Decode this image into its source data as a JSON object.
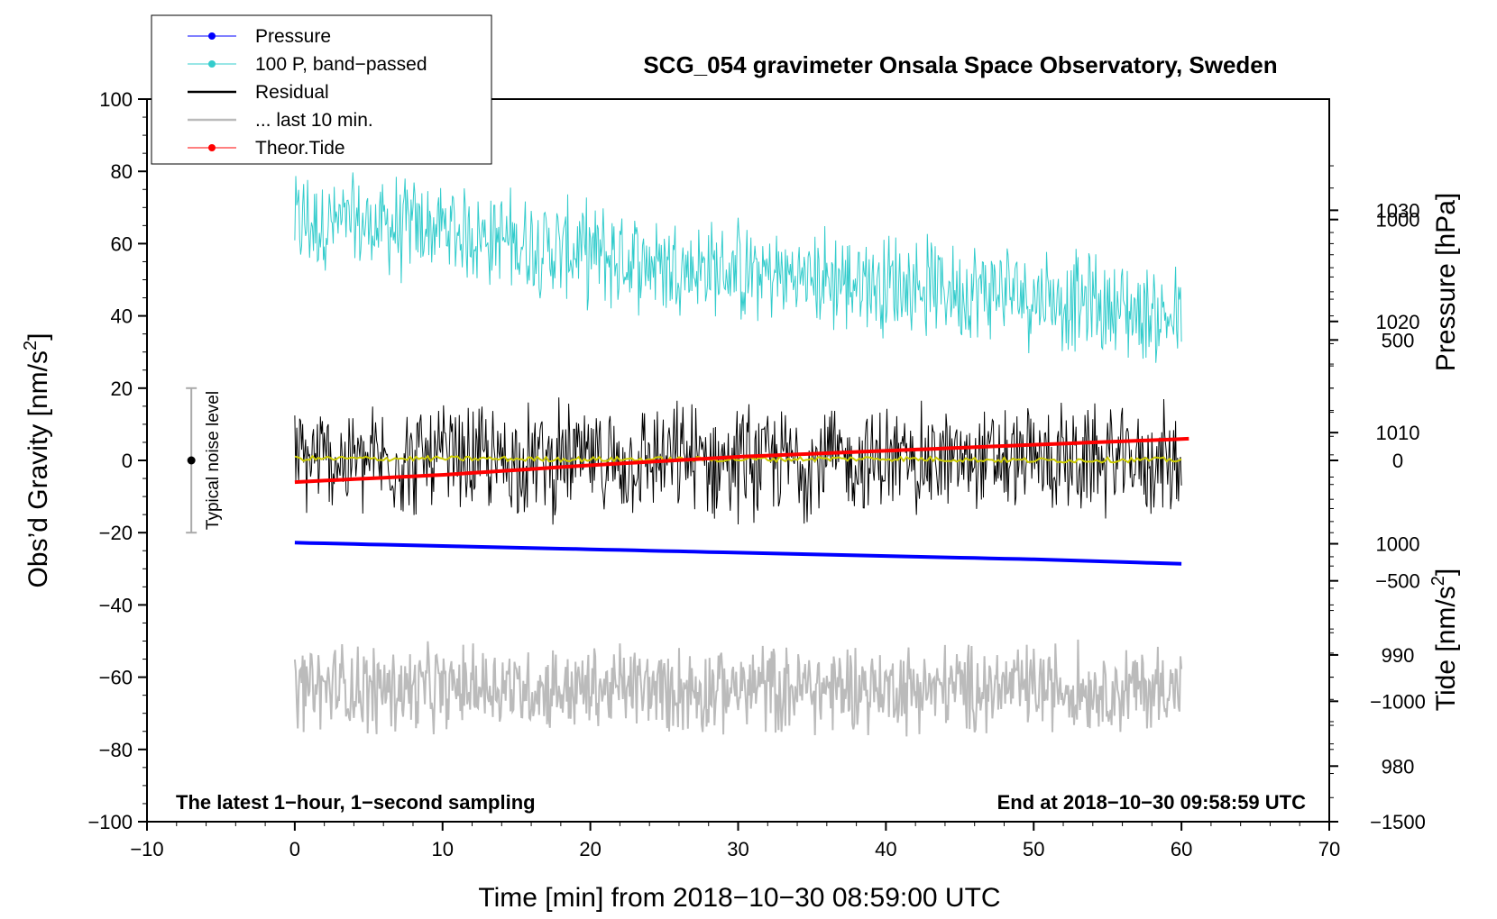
{
  "chart_data": {
    "type": "line",
    "title": "SCG_054 gravimeter Onsala Space Observatory, Sweden",
    "xlabel": "Time [min] from 2018−10−30 08:59:00 UTC",
    "ylabel_left": "Obs’d Gravity [nm/s",
    "ylabel_left_sup": "2",
    "ylabel_left_end": "]",
    "ylabel_right_pressure": "Pressure [hPa]",
    "ylabel_right_tide": "Tide [nm/s",
    "ylabel_right_tide_sup": "2",
    "ylabel_right_tide_end": "]",
    "xlim": [
      -10,
      70
    ],
    "ylim": [
      -100,
      100
    ],
    "pressure_lim": [
      975,
      1040
    ],
    "tide_lim": [
      -1500,
      1500
    ],
    "x_ticks": [
      -10,
      0,
      10,
      20,
      30,
      40,
      50,
      60,
      70
    ],
    "x_tick_labels": [
      "−10",
      "0",
      "10",
      "20",
      "30",
      "40",
      "50",
      "60",
      "70"
    ],
    "y_ticks": [
      -100,
      -80,
      -60,
      -40,
      -20,
      0,
      20,
      40,
      60,
      80,
      100
    ],
    "y_tick_labels": [
      "−100",
      "−80",
      "−60",
      "−40",
      "−20",
      "0",
      "20",
      "40",
      "60",
      "80",
      "100"
    ],
    "pressure_ticks": [
      980,
      990,
      1000,
      1010,
      1020,
      1030
    ],
    "pressure_tick_labels": [
      "980",
      "990",
      "1000",
      "1010",
      "1020",
      "1030"
    ],
    "tide_ticks": [
      -1500,
      -1000,
      -500,
      0,
      500,
      1000
    ],
    "tide_tick_labels": [
      "−1500",
      "−1000",
      "−500",
      "0",
      "500",
      "1000"
    ],
    "legend": [
      {
        "label": "Pressure",
        "color": "#0000ff",
        "marker": true
      },
      {
        "label": "100 P, band−passed",
        "color": "#33cccc",
        "marker": true
      },
      {
        "label": "Residual",
        "color": "#000000",
        "marker": false
      },
      {
        "label": "... last 10 min.",
        "color": "#bbbbbb",
        "marker": false
      },
      {
        "label": "Theor.Tide",
        "color": "#ff0000",
        "marker": true
      }
    ],
    "legend_position": "top-left",
    "annotations": {
      "left": "The latest 1−hour, 1−second sampling",
      "right": "End at 2018−10−30 09:58:59 UTC"
    },
    "noise_bar": {
      "label": "Typical noise level",
      "x": -7,
      "center": 0,
      "low": -20,
      "high": 20
    },
    "series": [
      {
        "name": "Pressure",
        "axis": "pressure",
        "color": "#0000ff",
        "x": [
          0,
          10,
          20,
          30,
          40,
          50,
          60
        ],
        "values": [
          1000.1,
          999.8,
          999.5,
          999.2,
          998.9,
          998.6,
          998.2
        ]
      },
      {
        "name": "100 P, band-passed",
        "axis": "left",
        "color": "#33cccc",
        "x": [
          0,
          10,
          20,
          30,
          40,
          50,
          60
        ],
        "values": [
          66,
          64,
          57,
          52,
          49,
          46,
          39
        ],
        "noise_amplitude": 12
      },
      {
        "name": "Residual",
        "axis": "left",
        "color": "#000000",
        "x": [
          0,
          10,
          20,
          30,
          40,
          50,
          60
        ],
        "values": [
          0,
          0,
          0,
          0,
          0,
          0,
          0
        ],
        "noise_amplitude": 13
      },
      {
        "name": "Residual smoothed",
        "axis": "left",
        "color": "#cccc00",
        "x": [
          0,
          10,
          20,
          30,
          40,
          50,
          60
        ],
        "values": [
          0.5,
          0.5,
          0.3,
          0.3,
          0.5,
          0,
          0.2
        ]
      },
      {
        "name": "... last 10 min.",
        "axis": "left",
        "color": "#bbbbbb",
        "x": [
          0,
          10,
          20,
          30,
          40,
          50,
          60
        ],
        "values": [
          -63,
          -63,
          -63,
          -63,
          -63,
          -63,
          -63
        ],
        "noise_amplitude": 10
      },
      {
        "name": "Theor.Tide",
        "axis": "tide",
        "color": "#ff0000",
        "x": [
          0,
          10,
          20,
          30,
          40,
          50,
          60.5
        ],
        "values": [
          -90,
          -60,
          -20,
          15,
          40,
          65,
          90
        ]
      }
    ]
  }
}
